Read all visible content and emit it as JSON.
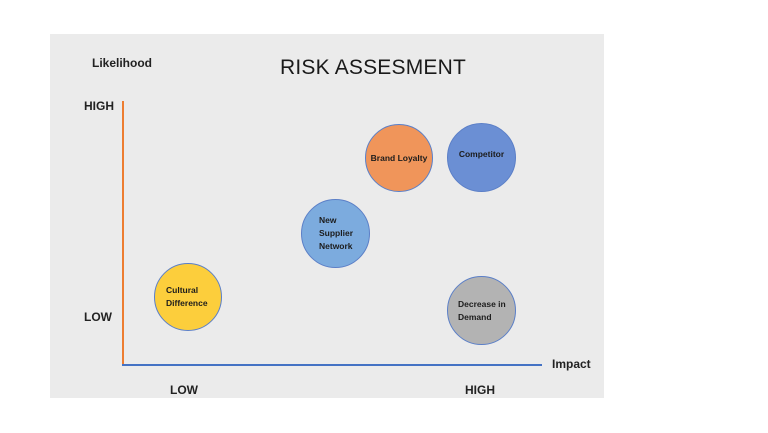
{
  "title": "RISK ASSESMENT",
  "y_axis": {
    "label": "Likelihood",
    "high": "HIGH",
    "low": "LOW"
  },
  "x_axis": {
    "label": "Impact",
    "low": "LOW",
    "high": "HIGH"
  },
  "risks": [
    {
      "label": "Brand Loyalty",
      "color": "#f0955a"
    },
    {
      "label": "Competitor",
      "color": "#6b8fd4"
    },
    {
      "label": "New\nSupplier\nNetwork",
      "color": "#7cabde"
    },
    {
      "label": "Cultural\nDifference",
      "color": "#fcce3c"
    },
    {
      "label": "Decrease in\nDemand",
      "color": "#b3b3b3"
    }
  ],
  "colors": {
    "y_axis": "#ed7d31",
    "x_axis": "#4472c4",
    "panel": "#ebebeb"
  }
}
